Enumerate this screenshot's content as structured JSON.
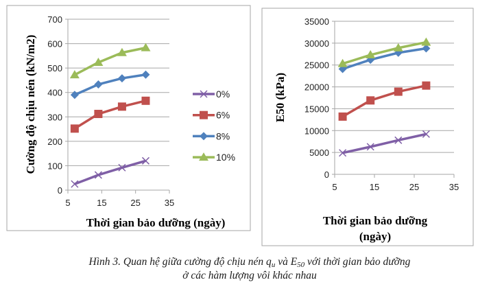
{
  "chart_data": [
    {
      "type": "line",
      "title": "",
      "xlabel": "Thời gian bảo dưỡng (ngày)",
      "ylabel": "Cường độ chịu nén (kN/m2)",
      "xlim": [
        5,
        35
      ],
      "ylim": [
        0,
        700
      ],
      "xticks": [
        "5",
        "15",
        "25",
        "35"
      ],
      "yticks": [
        "0",
        "100",
        "200",
        "300",
        "400",
        "500",
        "600",
        "700"
      ],
      "grid": "horizontal",
      "legend": "right",
      "x": [
        7,
        14,
        21,
        28
      ],
      "series": [
        {
          "name": "0%",
          "color": "#7f5fa6",
          "marker": "x",
          "values": [
            25,
            62,
            92,
            120
          ]
        },
        {
          "name": "6%",
          "color": "#c0504d",
          "marker": "square",
          "values": [
            252,
            312,
            342,
            366
          ]
        },
        {
          "name": "8%",
          "color": "#4f81bd",
          "marker": "diamond",
          "values": [
            390,
            433,
            458,
            473
          ]
        },
        {
          "name": "10%",
          "color": "#9bbb59",
          "marker": "triangle",
          "values": [
            472,
            523,
            563,
            583
          ]
        }
      ]
    },
    {
      "type": "line",
      "title": "",
      "xlabel": "Thời gian bảo dưỡng (ngày)",
      "ylabel": "E50 (kPa)",
      "xlim": [
        5,
        35
      ],
      "ylim": [
        0,
        35000
      ],
      "xticks": [
        "5",
        "15",
        "25",
        "35"
      ],
      "yticks": [
        "0",
        "5000",
        "10000",
        "15000",
        "20000",
        "25000",
        "30000",
        "35000"
      ],
      "grid": "horizontal",
      "x": [
        7,
        14,
        21,
        28
      ],
      "series": [
        {
          "color": "#7f5fa6",
          "marker": "x",
          "values": [
            4900,
            6300,
            7800,
            9200
          ]
        },
        {
          "color": "#c0504d",
          "marker": "square",
          "values": [
            13200,
            16900,
            18900,
            20300
          ]
        },
        {
          "color": "#4f81bd",
          "marker": "diamond",
          "values": [
            24100,
            26200,
            27800,
            28800
          ]
        },
        {
          "color": "#9bbb59",
          "marker": "triangle",
          "values": [
            25300,
            27300,
            28900,
            30200
          ]
        }
      ]
    }
  ],
  "caption": {
    "line1_a": "Hình 3. Quan hệ giữa cường độ chịu nén q",
    "line1_sub1": "u",
    "line1_b": " và E",
    "line1_sub2": "50",
    "line1_c": " với thời gian bảo dưỡng",
    "line2": "ở các hàm lượng vôi khác nhau"
  }
}
